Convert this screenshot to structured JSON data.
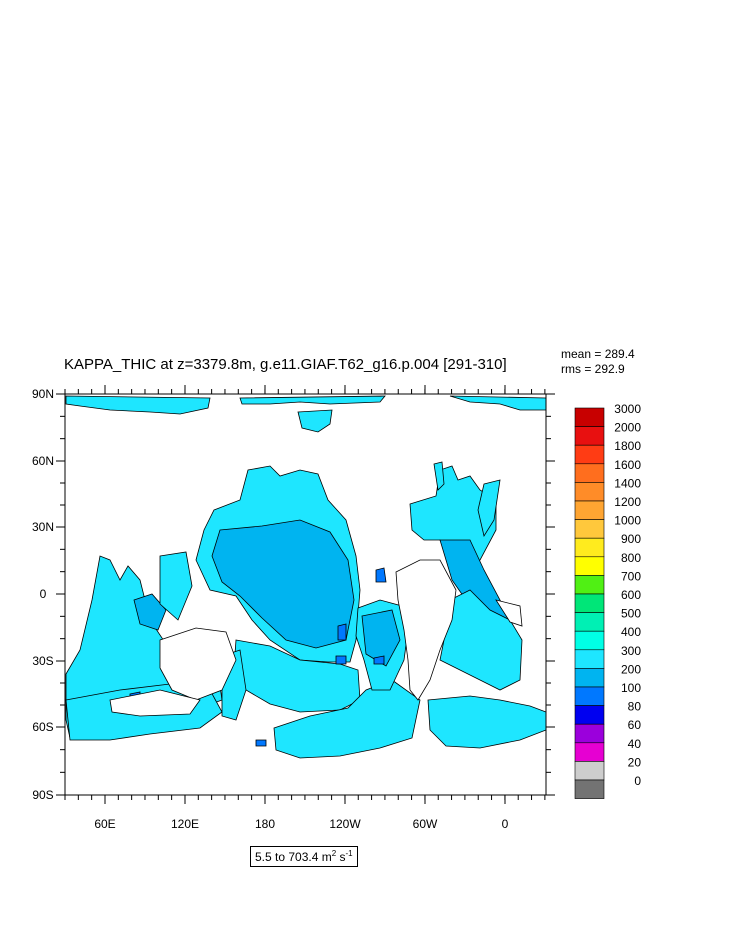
{
  "title": "KAPPA_THIC at z=3379.8m, g.e11.GIAF.T62_g16.p.004 [291-310]",
  "stats": {
    "mean": "mean = 289.4",
    "rms": "rms = 292.9"
  },
  "lat_labels": [
    "90N",
    "60N",
    "30N",
    "0",
    "30S",
    "60S",
    "90S"
  ],
  "lon_labels": [
    "60E",
    "120E",
    "180",
    "120W",
    "60W",
    "0"
  ],
  "range_label": {
    "prefix": "5.5 to 703.4 m",
    "exp1": "2",
    "mid": " s",
    "exp2": "-1"
  },
  "colorbar": {
    "levels": [
      "3000",
      "2000",
      "1800",
      "1600",
      "1400",
      "1200",
      "1000",
      "900",
      "800",
      "700",
      "600",
      "500",
      "400",
      "300",
      "200",
      "100",
      "80",
      "60",
      "40",
      "20",
      "0"
    ],
    "colors": [
      "#c80000",
      "#e81010",
      "#ff3c14",
      "#ff6e1e",
      "#ff8c28",
      "#ffa532",
      "#ffc83c",
      "#ffeb1e",
      "#ffff00",
      "#50f014",
      "#00e678",
      "#00f0b4",
      "#00ffe6",
      "#1ee6ff",
      "#00b4f0",
      "#0078ff",
      "#0000f0",
      "#9b00dc",
      "#e600d2",
      "#cdcdcd",
      "#737373"
    ]
  },
  "field_colors": {
    "ocean_300_400": "#1ee6ff",
    "ocean_200_300": "#00b4f0",
    "ocean_100_200": "#0078ff",
    "land": "#ffffff"
  }
}
